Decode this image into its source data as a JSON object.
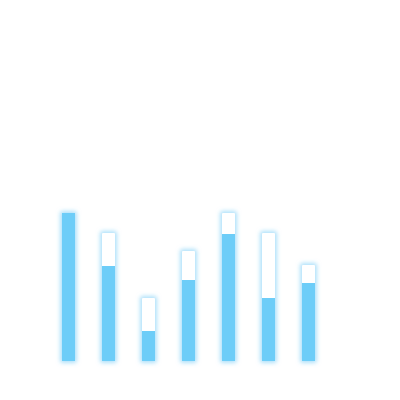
{
  "accent_color": "#6dcdf8",
  "track_color": "#ffffff",
  "meters": [
    {
      "fill_fraction": 1.0
    },
    {
      "fill_fraction": 0.74
    },
    {
      "fill_fraction": 0.48
    },
    {
      "fill_fraction": 0.74
    },
    {
      "fill_fraction": 0.86
    },
    {
      "fill_fraction": 0.49
    },
    {
      "fill_fraction": 0.81
    }
  ]
}
